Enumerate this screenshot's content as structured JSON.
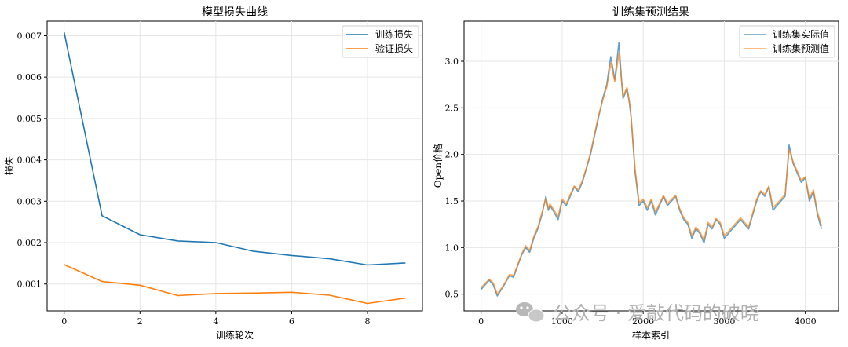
{
  "chart_data": [
    {
      "type": "line",
      "title": "模型损失曲线",
      "xlabel": "训练轮次",
      "ylabel": "损失",
      "xlim": [
        -0.45,
        9.45
      ],
      "ylim": [
        0.00035,
        0.00735
      ],
      "xticks": [
        0,
        2,
        4,
        6,
        8
      ],
      "xtick_labels": [
        "0",
        "2",
        "4",
        "6",
        "8"
      ],
      "yticks": [
        0.001,
        0.002,
        0.003,
        0.004,
        0.005,
        0.006,
        0.007
      ],
      "ytick_labels": [
        "0.001",
        "0.002",
        "0.003",
        "0.004",
        "0.005",
        "0.006",
        "0.007"
      ],
      "grid": true,
      "legend_position": "top-right",
      "x": [
        0,
        1,
        2,
        3,
        4,
        5,
        6,
        7,
        8,
        9
      ],
      "series": [
        {
          "name": "训练损失",
          "color": "#1f77b4",
          "values": [
            0.00708,
            0.00265,
            0.00219,
            0.00204,
            0.002,
            0.00179,
            0.00169,
            0.00161,
            0.00146,
            0.00151
          ]
        },
        {
          "name": "验证损失",
          "color": "#ff7f0e",
          "values": [
            0.00147,
            0.00106,
            0.00097,
            0.00072,
            0.00077,
            0.00078,
            0.0008,
            0.00073,
            0.00053,
            0.00066
          ]
        }
      ]
    },
    {
      "type": "line",
      "title": "训练集预测结果",
      "xlabel": "样本索引",
      "ylabel": "Open价格",
      "xlim": [
        -210,
        4410
      ],
      "ylim": [
        0.32,
        3.43
      ],
      "xticks": [
        0,
        1000,
        2000,
        3000,
        4000
      ],
      "xtick_labels": [
        "0",
        "1000",
        "2000",
        "3000",
        "4000"
      ],
      "yticks": [
        0.5,
        1.0,
        1.5,
        2.0,
        2.5,
        3.0
      ],
      "ytick_labels": [
        "0.5",
        "1.0",
        "1.5",
        "2.0",
        "2.5",
        "3.0"
      ],
      "grid": true,
      "legend_position": "top-right",
      "x": [
        0,
        100,
        150,
        200,
        250,
        300,
        350,
        400,
        450,
        500,
        550,
        600,
        650,
        700,
        750,
        800,
        830,
        850,
        900,
        950,
        1000,
        1050,
        1100,
        1150,
        1200,
        1250,
        1300,
        1350,
        1400,
        1450,
        1500,
        1550,
        1600,
        1650,
        1700,
        1750,
        1800,
        1830,
        1850,
        1900,
        1950,
        2000,
        2050,
        2100,
        2150,
        2200,
        2250,
        2300,
        2350,
        2400,
        2450,
        2500,
        2550,
        2600,
        2650,
        2700,
        2750,
        2800,
        2850,
        2900,
        2950,
        3000,
        3050,
        3100,
        3150,
        3200,
        3250,
        3300,
        3350,
        3400,
        3450,
        3500,
        3550,
        3600,
        3650,
        3700,
        3750,
        3800,
        3850,
        3900,
        3950,
        4000,
        4050,
        4100,
        4150,
        4200
      ],
      "series": [
        {
          "name": "训练集实际值",
          "color": "#1f77b4",
          "alpha": 0.7,
          "values": [
            0.55,
            0.65,
            0.6,
            0.48,
            0.55,
            0.62,
            0.7,
            0.68,
            0.8,
            0.92,
            1.0,
            0.95,
            1.1,
            1.2,
            1.35,
            1.55,
            1.4,
            1.45,
            1.38,
            1.3,
            1.5,
            1.45,
            1.55,
            1.65,
            1.6,
            1.7,
            1.85,
            2.0,
            2.2,
            2.4,
            2.6,
            2.75,
            3.05,
            2.8,
            3.2,
            2.6,
            2.7,
            2.55,
            2.4,
            1.8,
            1.45,
            1.5,
            1.4,
            1.5,
            1.35,
            1.45,
            1.55,
            1.45,
            1.5,
            1.55,
            1.4,
            1.3,
            1.25,
            1.1,
            1.2,
            1.15,
            1.05,
            1.25,
            1.2,
            1.3,
            1.25,
            1.1,
            1.15,
            1.2,
            1.25,
            1.3,
            1.25,
            1.2,
            1.35,
            1.5,
            1.6,
            1.55,
            1.65,
            1.4,
            1.45,
            1.5,
            1.55,
            2.1,
            1.9,
            1.8,
            1.7,
            1.75,
            1.5,
            1.6,
            1.35,
            1.2
          ]
        },
        {
          "name": "训练集预测值",
          "color": "#ff7f0e",
          "alpha": 0.7,
          "values": [
            0.57,
            0.66,
            0.62,
            0.5,
            0.56,
            0.63,
            0.71,
            0.7,
            0.81,
            0.93,
            1.02,
            0.97,
            1.12,
            1.22,
            1.37,
            1.53,
            1.42,
            1.47,
            1.4,
            1.33,
            1.52,
            1.47,
            1.57,
            1.66,
            1.62,
            1.72,
            1.86,
            2.02,
            2.22,
            2.42,
            2.58,
            2.72,
            2.98,
            2.78,
            3.08,
            2.62,
            2.72,
            2.57,
            2.42,
            1.84,
            1.48,
            1.52,
            1.43,
            1.52,
            1.38,
            1.47,
            1.56,
            1.47,
            1.52,
            1.56,
            1.42,
            1.32,
            1.27,
            1.13,
            1.22,
            1.17,
            1.08,
            1.27,
            1.22,
            1.31,
            1.27,
            1.13,
            1.17,
            1.22,
            1.27,
            1.32,
            1.27,
            1.22,
            1.37,
            1.52,
            1.61,
            1.57,
            1.66,
            1.43,
            1.47,
            1.52,
            1.57,
            2.05,
            1.92,
            1.82,
            1.72,
            1.76,
            1.53,
            1.62,
            1.38,
            1.23
          ]
        }
      ]
    }
  ],
  "watermark": {
    "text": "公众号 · 爱敲代码的破晓",
    "icon": "wechat-icon"
  }
}
